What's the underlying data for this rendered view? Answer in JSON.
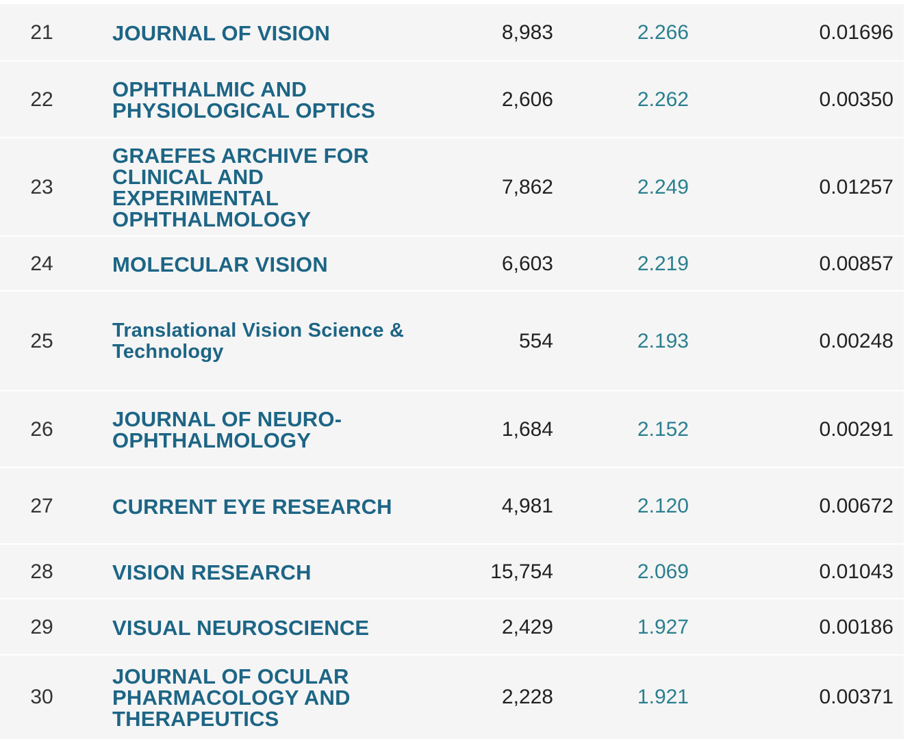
{
  "rows": [
    {
      "rank": "21",
      "title": "JOURNAL OF VISION",
      "total_cites": "8,983",
      "impact_factor": "2.266",
      "eigenfactor": "0.01696"
    },
    {
      "rank": "22",
      "title": "OPHTHALMIC AND PHYSIOLOGICAL OPTICS",
      "total_cites": "2,606",
      "impact_factor": "2.262",
      "eigenfactor": "0.00350"
    },
    {
      "rank": "23",
      "title": "GRAEFES ARCHIVE FOR CLINICAL AND EXPERIMENTAL OPHTHALMOLOGY",
      "total_cites": "7,862",
      "impact_factor": "2.249",
      "eigenfactor": "0.01257"
    },
    {
      "rank": "24",
      "title": "MOLECULAR VISION",
      "total_cites": "6,603",
      "impact_factor": "2.219",
      "eigenfactor": "0.00857"
    },
    {
      "rank": "25",
      "title": "Translational Vision Science & Technology",
      "total_cites": "554",
      "impact_factor": "2.193",
      "eigenfactor": "0.00248"
    },
    {
      "rank": "26",
      "title": "JOURNAL OF NEURO-OPHTHALMOLOGY",
      "total_cites": "1,684",
      "impact_factor": "2.152",
      "eigenfactor": "0.00291"
    },
    {
      "rank": "27",
      "title": "CURRENT EYE RESEARCH",
      "total_cites": "4,981",
      "impact_factor": "2.120",
      "eigenfactor": "0.00672"
    },
    {
      "rank": "28",
      "title": "VISION RESEARCH",
      "total_cites": "15,754",
      "impact_factor": "2.069",
      "eigenfactor": "0.01043"
    },
    {
      "rank": "29",
      "title": "VISUAL NEUROSCIENCE",
      "total_cites": "2,429",
      "impact_factor": "1.927",
      "eigenfactor": "0.00186"
    },
    {
      "rank": "30",
      "title": "JOURNAL OF OCULAR PHARMACOLOGY AND THERAPEUTICS",
      "total_cites": "2,228",
      "impact_factor": "1.921",
      "eigenfactor": "0.00371"
    }
  ],
  "colors": {
    "row_background": "#f5f5f5",
    "title_link": "#1d6585",
    "impact_factor": "#2a7f8f",
    "text": "#222222"
  }
}
